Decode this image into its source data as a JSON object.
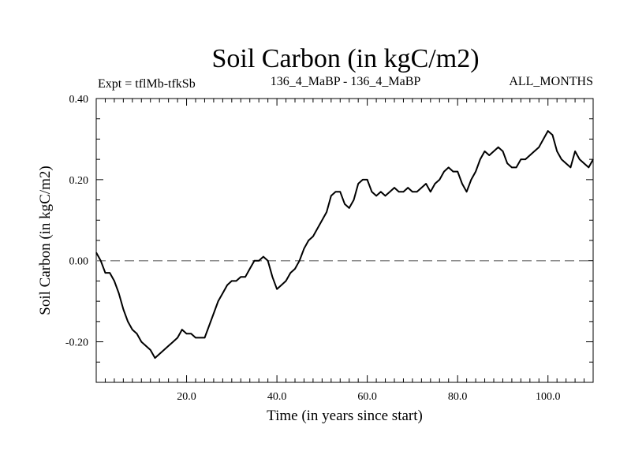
{
  "chart_data": {
    "type": "line",
    "title": "Soil Carbon (in kgC/m2)",
    "subtitle_left": "Expt = tflMb-tfkSb",
    "subtitle_center": "136_4_MaBP - 136_4_MaBP",
    "subtitle_right": "ALL_MONTHS",
    "xlabel": "Time (in years since start)",
    "ylabel": "Soil Carbon (in kgC/m2)",
    "xlim": [
      0,
      110
    ],
    "ylim": [
      -0.3,
      0.4
    ],
    "x_ticks": [
      20,
      40,
      60,
      80,
      100
    ],
    "x_tick_labels": [
      "20.0",
      "40.0",
      "60.0",
      "80.0",
      "100.0"
    ],
    "y_ticks": [
      -0.2,
      0.0,
      0.2,
      0.4
    ],
    "y_tick_labels": [
      "-0.20",
      "0.00",
      "0.20",
      "0.40"
    ],
    "reference_line": {
      "y": 0.0,
      "style": "dashed",
      "color": "#888888"
    },
    "line_color": "#000000",
    "series": [
      {
        "name": "Soil Carbon",
        "x": [
          0,
          1,
          2,
          3,
          4,
          5,
          6,
          7,
          8,
          9,
          10,
          11,
          12,
          13,
          14,
          15,
          16,
          17,
          18,
          19,
          20,
          21,
          22,
          23,
          24,
          25,
          26,
          27,
          28,
          29,
          30,
          31,
          32,
          33,
          34,
          35,
          36,
          37,
          38,
          39,
          40,
          41,
          42,
          43,
          44,
          45,
          46,
          47,
          48,
          49,
          50,
          51,
          52,
          53,
          54,
          55,
          56,
          57,
          58,
          59,
          60,
          61,
          62,
          63,
          64,
          65,
          66,
          67,
          68,
          69,
          70,
          71,
          72,
          73,
          74,
          75,
          76,
          77,
          78,
          79,
          80,
          81,
          82,
          83,
          84,
          85,
          86,
          87,
          88,
          89,
          90,
          91,
          92,
          93,
          94,
          95,
          96,
          97,
          98,
          99,
          100,
          101,
          102,
          103,
          104,
          105,
          106,
          107,
          108,
          109,
          110
        ],
        "values": [
          0.02,
          0.0,
          -0.03,
          -0.03,
          -0.05,
          -0.08,
          -0.12,
          -0.15,
          -0.17,
          -0.18,
          -0.2,
          -0.21,
          -0.22,
          -0.24,
          -0.23,
          -0.22,
          -0.21,
          -0.2,
          -0.19,
          -0.17,
          -0.18,
          -0.18,
          -0.19,
          -0.19,
          -0.19,
          -0.16,
          -0.13,
          -0.1,
          -0.08,
          -0.06,
          -0.05,
          -0.05,
          -0.04,
          -0.04,
          -0.02,
          0.0,
          0.0,
          0.01,
          0.0,
          -0.04,
          -0.07,
          -0.06,
          -0.05,
          -0.03,
          -0.02,
          0.0,
          0.03,
          0.05,
          0.06,
          0.08,
          0.1,
          0.12,
          0.16,
          0.17,
          0.17,
          0.14,
          0.13,
          0.15,
          0.19,
          0.2,
          0.2,
          0.17,
          0.16,
          0.17,
          0.16,
          0.17,
          0.18,
          0.17,
          0.17,
          0.18,
          0.17,
          0.17,
          0.18,
          0.19,
          0.17,
          0.19,
          0.2,
          0.22,
          0.23,
          0.22,
          0.22,
          0.19,
          0.17,
          0.2,
          0.22,
          0.25,
          0.27,
          0.26,
          0.27,
          0.28,
          0.27,
          0.24,
          0.23,
          0.23,
          0.25,
          0.25,
          0.26,
          0.27,
          0.28,
          0.3,
          0.32,
          0.31,
          0.27,
          0.25,
          0.24,
          0.23,
          0.27,
          0.25,
          0.24,
          0.23,
          0.25
        ]
      }
    ]
  }
}
